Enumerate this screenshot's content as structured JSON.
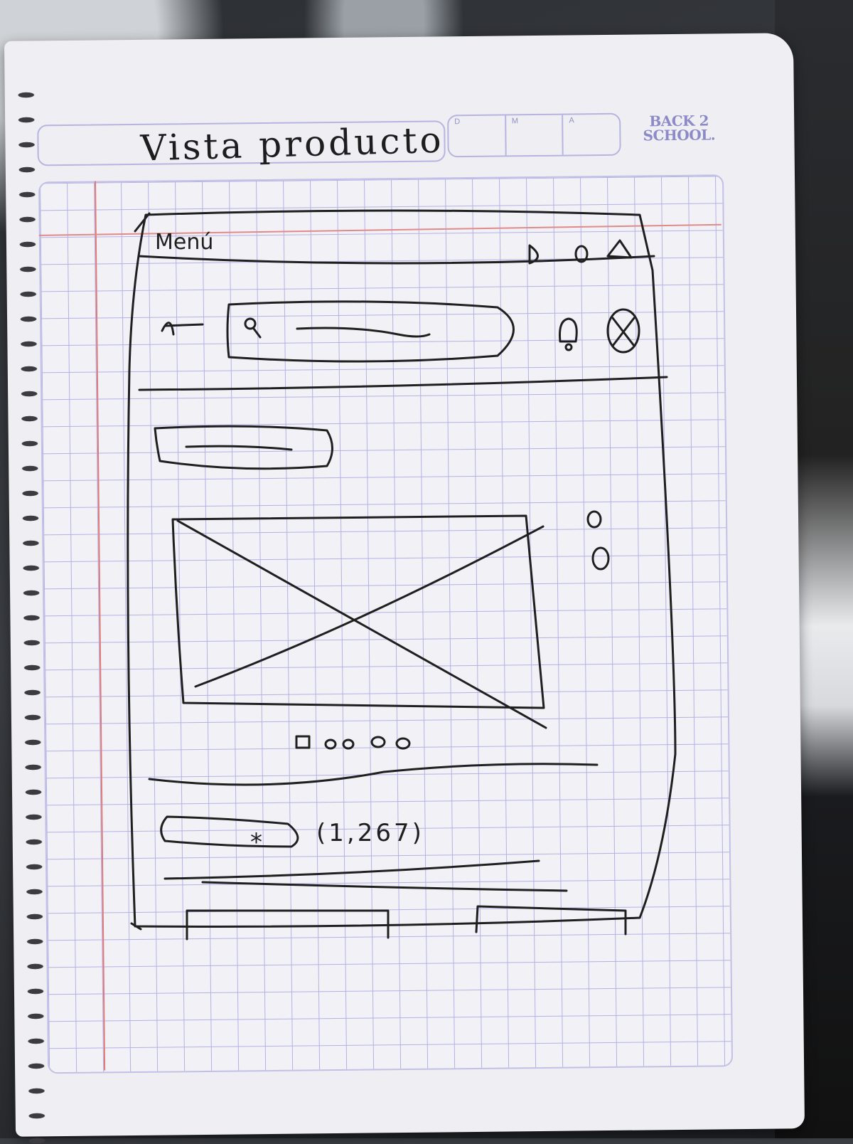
{
  "notebook": {
    "title": "Vista producto",
    "date_labels": [
      "D",
      "M",
      "A"
    ],
    "brand_line1": "BACK 2",
    "brand_line2": "SCHOOL."
  },
  "wireframe": {
    "menu_label": "Menú",
    "rating_count": "(1,267)",
    "rating_star": "*",
    "search_icon": "magnifier-icon",
    "top_icons": [
      "play-icon",
      "circle-icon",
      "triangle-icon"
    ],
    "header_icons": [
      "bell-icon",
      "close-circle-icon"
    ],
    "carousel_indicator_count": 5
  },
  "colors": {
    "paper": "#f1f1f6",
    "grid": "#b3b1e6",
    "margin": "#e07a7a",
    "ink": "#1f1f1f",
    "brand": "#8d8ac9"
  }
}
